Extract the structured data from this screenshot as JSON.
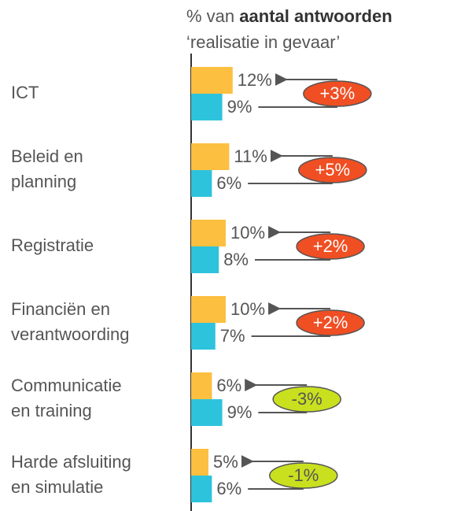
{
  "chart_data": {
    "type": "bar",
    "title_prefix": "% van",
    "title_bold": "aantal antwoorden",
    "subtitle": "‘realisatie in gevaar’",
    "categories": [
      "ICT",
      "Beleid en\nplanning",
      "Registratie",
      "Financiën en\nverantwoording",
      "Communicatie\nen training",
      "Harde afsluiting\nen simulatie"
    ],
    "series": [
      {
        "color": "#fdbf3f",
        "values": [
          12,
          11,
          10,
          10,
          6,
          5
        ],
        "value_labels": [
          "12%",
          "11%",
          "10%",
          "10%",
          "6%",
          "5%"
        ]
      },
      {
        "color": "#2ec3dc",
        "values": [
          9,
          6,
          8,
          7,
          9,
          6
        ],
        "value_labels": [
          "9%",
          "6%",
          "8%",
          "7%",
          "9%",
          "6%"
        ]
      }
    ],
    "changes": {
      "values": [
        3,
        5,
        2,
        2,
        -3,
        -1
      ],
      "value_labels": [
        "+3%",
        "+5%",
        "+2%",
        "+2%",
        "-3%",
        "-1%"
      ],
      "positive_color": "#f04e23",
      "negative_color": "#c9e01f"
    },
    "xlim": [
      0,
      75
    ]
  }
}
